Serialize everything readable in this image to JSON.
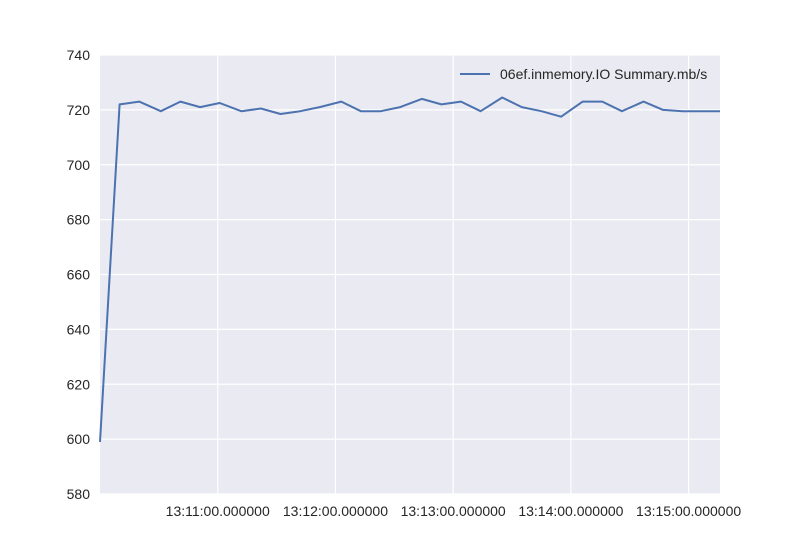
{
  "chart_data": {
    "type": "line",
    "title": "",
    "xlabel": "",
    "ylabel": "",
    "ylim": [
      580,
      740
    ],
    "xlim": [
      "13:10:00",
      "13:15:16"
    ],
    "yticks": [
      580,
      600,
      620,
      640,
      660,
      680,
      700,
      720,
      740
    ],
    "xticks": [
      {
        "time": "13:11:00",
        "label": "13:11:00.000000"
      },
      {
        "time": "13:12:00",
        "label": "13:12:00.000000"
      },
      {
        "time": "13:13:00",
        "label": "13:13:00.000000"
      },
      {
        "time": "13:14:00",
        "label": "13:14:00.000000"
      },
      {
        "time": "13:15:00",
        "label": "13:15:00.000000"
      }
    ],
    "grid": true,
    "legend_position": "top-right",
    "series": [
      {
        "name": "06ef.inmemory.IO Summary.mb/s",
        "color": "#4c72b0",
        "x": [
          "13:10:00",
          "13:10:10",
          "13:10:20",
          "13:10:31",
          "13:10:41",
          "13:10:51",
          "13:11:01",
          "13:11:12",
          "13:11:22",
          "13:11:32",
          "13:11:42",
          "13:11:52",
          "13:12:03",
          "13:12:13",
          "13:12:23",
          "13:12:33",
          "13:12:44",
          "13:12:54",
          "13:13:04",
          "13:13:14",
          "13:13:25",
          "13:13:35",
          "13:13:45",
          "13:13:55",
          "13:14:06",
          "13:14:16",
          "13:14:26",
          "13:14:37",
          "13:14:47",
          "13:14:57",
          "13:15:07",
          "13:15:16"
        ],
        "y": [
          599,
          722,
          723,
          719.5,
          723,
          721,
          722.5,
          719.5,
          720.5,
          718.5,
          719.5,
          721,
          723,
          719.5,
          719.5,
          721,
          724,
          722,
          723,
          719.5,
          724.5,
          721,
          719.5,
          717.5,
          723,
          723,
          719.5,
          723,
          720,
          719.5,
          719.5,
          719.5
        ]
      }
    ]
  }
}
